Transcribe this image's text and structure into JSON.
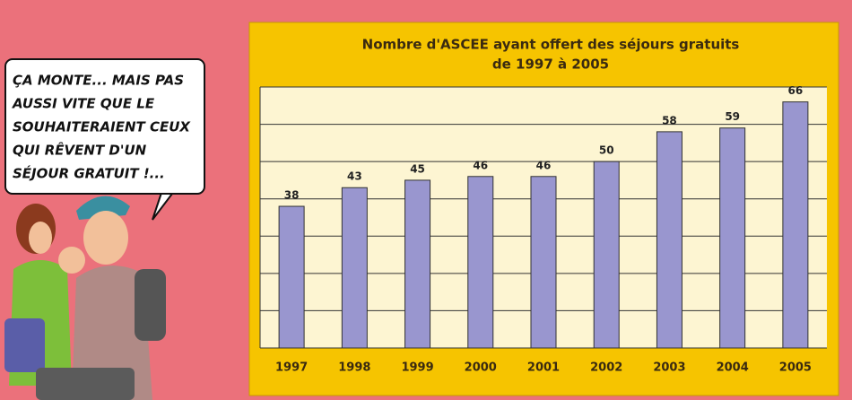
{
  "chart_data": {
    "type": "bar",
    "title": "Nombre d'ASCEE ayant offert des séjours gratuits",
    "subtitle": "de 1997 à 2005",
    "categories": [
      "1997",
      "1998",
      "1999",
      "2000",
      "2001",
      "2002",
      "2003",
      "2004",
      "2005"
    ],
    "values": [
      38,
      43,
      45,
      46,
      46,
      50,
      58,
      59,
      66
    ],
    "color": "#9996cf",
    "ylim": [
      0,
      70
    ],
    "yticks": [
      0,
      10,
      20,
      30,
      40,
      50,
      60,
      70
    ],
    "grid": true
  },
  "speech_bubble": {
    "lines": [
      "ÇA MONTE... MAIS PAS",
      "AUSSI VITE QUE LE",
      "SOUHAITERAIENT CEUX",
      "QUI RÊVENT D'UN",
      "SÉJOUR GRATUIT !..."
    ]
  }
}
